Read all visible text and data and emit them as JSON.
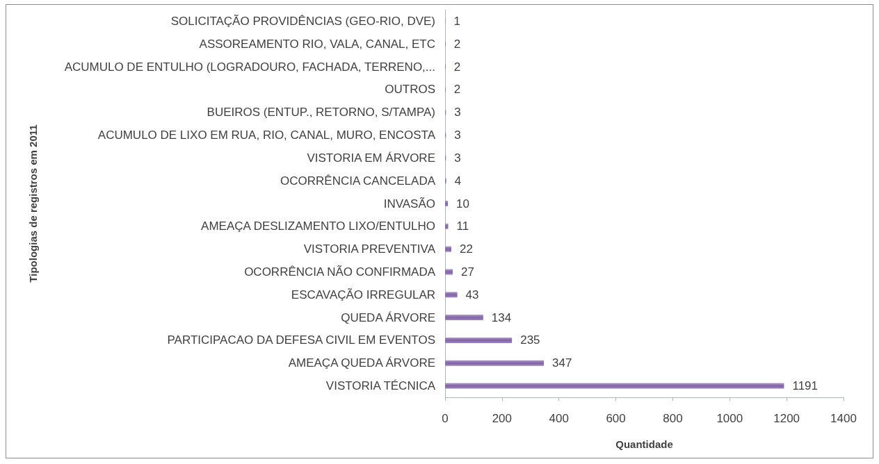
{
  "chart_data": {
    "type": "bar",
    "orientation": "horizontal",
    "categories": [
      "SOLICITAÇÃO PROVIDÊNCIAS (GEO-RIO, DVE)",
      "ASSOREAMENTO RIO, VALA, CANAL, ETC",
      "ACUMULO DE ENTULHO (LOGRADOURO, FACHADA, TERRENO,...",
      "OUTROS",
      "BUEIROS (ENTUP., RETORNO, S/TAMPA)",
      "ACUMULO DE LIXO EM RUA, RIO, CANAL, MURO, ENCOSTA",
      "VISTORIA EM ÁRVORE",
      "OCORRÊNCIA CANCELADA",
      "INVASÃO",
      "AMEAÇA DESLIZAMENTO LIXO/ENTULHO",
      "VISTORIA PREVENTIVA",
      "OCORRÊNCIA NÃO CONFIRMADA",
      "ESCAVAÇÃO IRREGULAR",
      "QUEDA ÁRVORE",
      "PARTICIPACAO DA DEFESA CIVIL EM EVENTOS",
      "AMEAÇA QUEDA ÁRVORE",
      "VISTORIA TÉCNICA"
    ],
    "values": [
      1,
      2,
      2,
      2,
      3,
      3,
      3,
      4,
      10,
      11,
      22,
      27,
      43,
      134,
      235,
      347,
      1191
    ],
    "color": "#8064a2",
    "xlim": [
      0,
      1400
    ],
    "xticks": [
      0,
      200,
      400,
      600,
      800,
      1000,
      1200,
      1400
    ],
    "xlabel": "Quantidade",
    "ylabel": "Tipologias de registros em 2011",
    "data_labels": true,
    "grid": false
  }
}
